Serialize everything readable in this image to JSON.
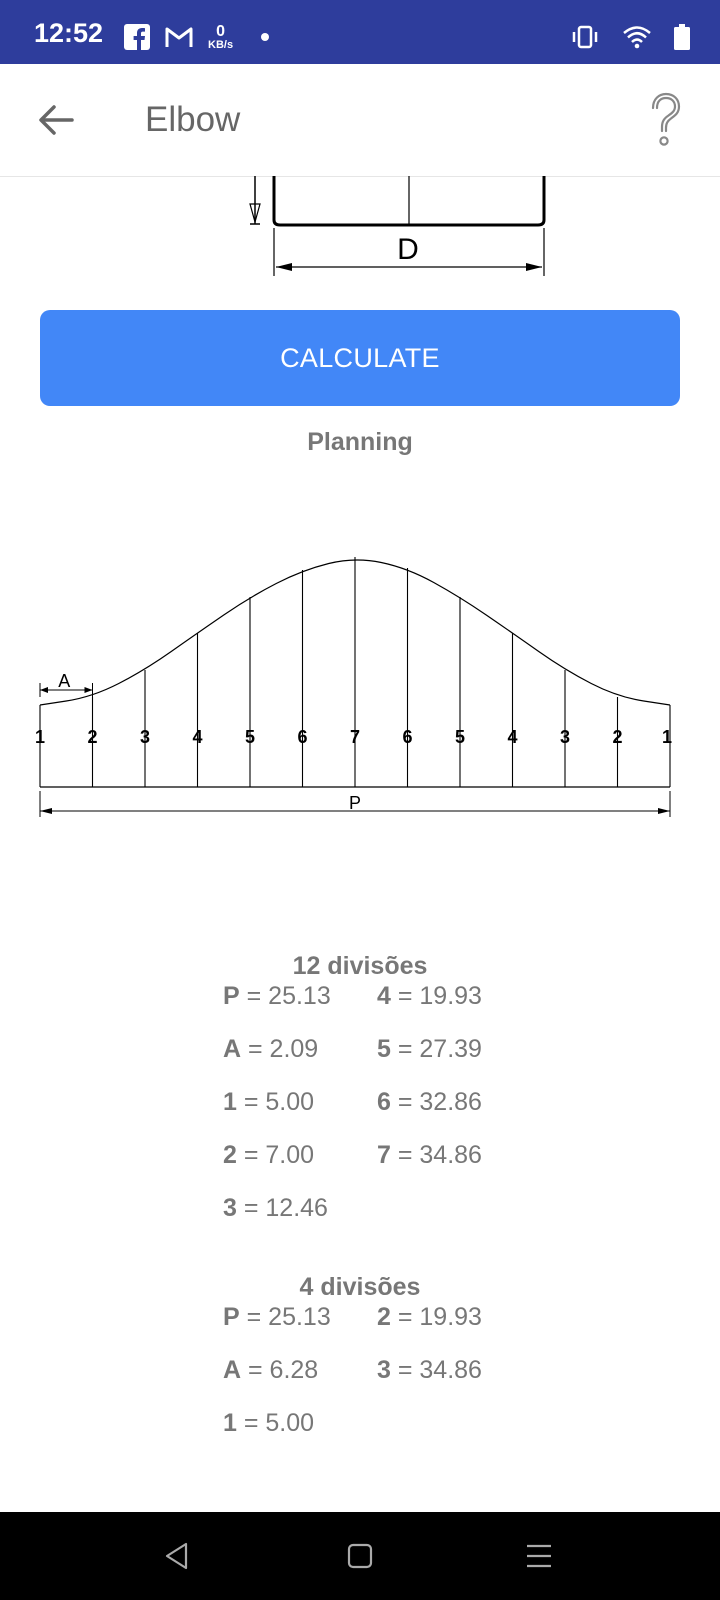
{
  "status_bar": {
    "time": "12:52",
    "kbs_value": "0",
    "kbs_unit": "KB/s",
    "icons": [
      "facebook-icon",
      "gmail-icon",
      "notification-dot",
      "vibrate-icon",
      "wifi-icon",
      "battery-icon"
    ]
  },
  "app_bar": {
    "title": "Elbow",
    "back_icon": "arrow-left-icon",
    "help_icon": "question-mark-icon"
  },
  "drawing": {
    "diameter_label": "D"
  },
  "calculate_label": "CALCULATE",
  "planning_label": "Planning",
  "pattern": {
    "a_label": "A",
    "p_label": "P",
    "division_labels": [
      "1",
      "2",
      "3",
      "4",
      "5",
      "6",
      "7",
      "6",
      "5",
      "4",
      "3",
      "2",
      "1"
    ]
  },
  "results12": {
    "heading": "12 divisões",
    "col1": [
      {
        "key": "P",
        "value": "= 25.13"
      },
      {
        "key": "A",
        "value": "= 2.09"
      },
      {
        "key": "1",
        "value": "= 5.00"
      },
      {
        "key": "2",
        "value": "= 7.00"
      },
      {
        "key": "3",
        "value": "= 12.46"
      }
    ],
    "col2": [
      {
        "key": "4",
        "value": "= 19.93"
      },
      {
        "key": "5",
        "value": "= 27.39"
      },
      {
        "key": "6",
        "value": "= 32.86"
      },
      {
        "key": "7",
        "value": "= 34.86"
      }
    ]
  },
  "results4": {
    "heading": "4 divisões",
    "col1": [
      {
        "key": "P",
        "value": "= 25.13"
      },
      {
        "key": "A",
        "value": "= 6.28"
      },
      {
        "key": "1",
        "value": "= 5.00"
      }
    ],
    "col2": [
      {
        "key": "2",
        "value": "= 19.93"
      },
      {
        "key": "3",
        "value": "= 34.86"
      }
    ]
  },
  "nav_bar": {
    "icons": [
      "back-triangle-icon",
      "home-square-icon",
      "menu-lines-icon"
    ]
  },
  "colors": {
    "status_bar": "#2E3D9C",
    "button": "#4287F7",
    "text_gray": "#777777"
  }
}
